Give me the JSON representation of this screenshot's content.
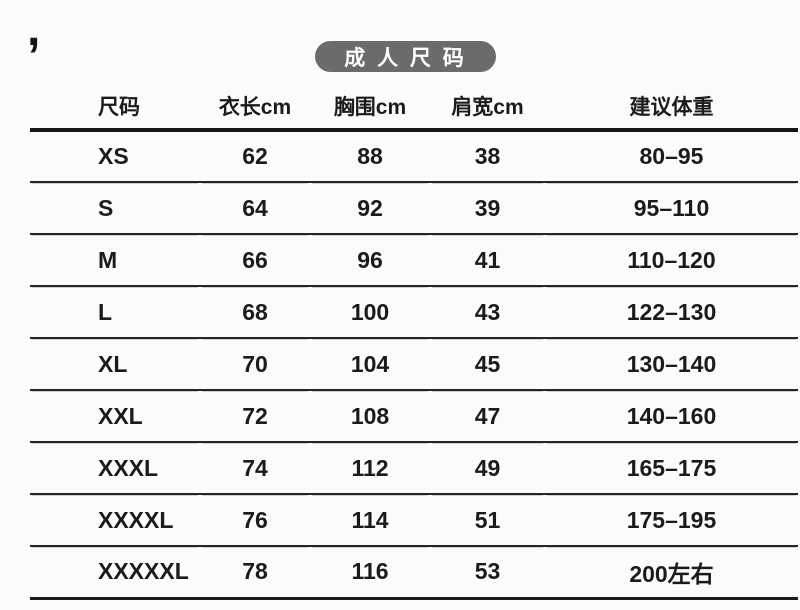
{
  "decoration": {
    "mark": ","
  },
  "title": {
    "text": "成 人 尺 码"
  },
  "colors": {
    "pill_bg": "#6b6b6b",
    "pill_text": "#ffffff",
    "text": "#1b1b1b",
    "rule": "#202020",
    "background": "#fbfbfb"
  },
  "chart_data": {
    "type": "table",
    "title": "成人尺码",
    "columns": [
      "尺码",
      "衣长cm",
      "胸围cm",
      "肩宽cm",
      "建议体重"
    ],
    "rows": [
      [
        "XS",
        "62",
        "88",
        "38",
        "80–95"
      ],
      [
        "S",
        "64",
        "92",
        "39",
        "95–110"
      ],
      [
        "M",
        "66",
        "96",
        "41",
        "110–120"
      ],
      [
        "L",
        "68",
        "100",
        "43",
        "122–130"
      ],
      [
        "XL",
        "70",
        "104",
        "45",
        "130–140"
      ],
      [
        "XXL",
        "72",
        "108",
        "47",
        "140–160"
      ],
      [
        "XXXL",
        "74",
        "112",
        "49",
        "165–175"
      ],
      [
        "XXXXL",
        "76",
        "114",
        "51",
        "175–195"
      ],
      [
        "XXXXXL",
        "78",
        "116",
        "53",
        "200左右"
      ]
    ],
    "layout": {
      "header_rule": "thick",
      "row_rules": "thin",
      "size_column_alignment": "left",
      "value_alignment": "center"
    }
  }
}
